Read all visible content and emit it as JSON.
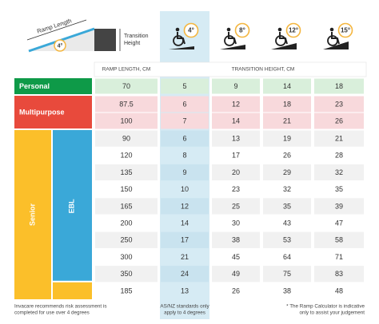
{
  "header": {
    "ramp_length_label": "Ramp Length",
    "angle_label": "4°",
    "transition_height_label": [
      "Transition",
      "Height"
    ],
    "angles": [
      "4°",
      "8°",
      "12°",
      "15°"
    ]
  },
  "table": {
    "columns": [
      "RAMP LENGTH, CM",
      "TRANSITION HEIGHT, CM"
    ],
    "groups": [
      {
        "label": "Personal",
        "rows": [
          [
            70,
            5,
            9,
            14,
            18
          ]
        ]
      },
      {
        "label": "Multipurpose",
        "rows": [
          [
            87.5,
            6,
            12,
            18,
            23
          ],
          [
            100,
            7,
            14,
            21,
            26
          ]
        ]
      },
      {
        "label": "Senior",
        "subgroups": [
          {
            "label": "EBL",
            "rows": [
              [
                90,
                6,
                13,
                19,
                21
              ],
              [
                120,
                8,
                17,
                26,
                28
              ],
              [
                135,
                9,
                20,
                29,
                32
              ],
              [
                150,
                10,
                23,
                32,
                35
              ],
              [
                165,
                12,
                25,
                35,
                39
              ],
              [
                200,
                14,
                30,
                43,
                47
              ],
              [
                250,
                17,
                38,
                53,
                58
              ],
              [
                300,
                21,
                45,
                64,
                71
              ],
              [
                350,
                24,
                49,
                75,
                83
              ]
            ]
          }
        ],
        "rows": [
          [
            185,
            13,
            26,
            38,
            48
          ]
        ]
      }
    ]
  },
  "footer": {
    "left": [
      "Invacare recommends risk assessment is",
      "completed for use over 4 degrees"
    ],
    "middle": [
      "AS/NZ standards only",
      "apply to 4 degrees"
    ],
    "right": [
      "* The Ramp Calculator is indicative",
      "only to assist your judgement"
    ]
  }
}
